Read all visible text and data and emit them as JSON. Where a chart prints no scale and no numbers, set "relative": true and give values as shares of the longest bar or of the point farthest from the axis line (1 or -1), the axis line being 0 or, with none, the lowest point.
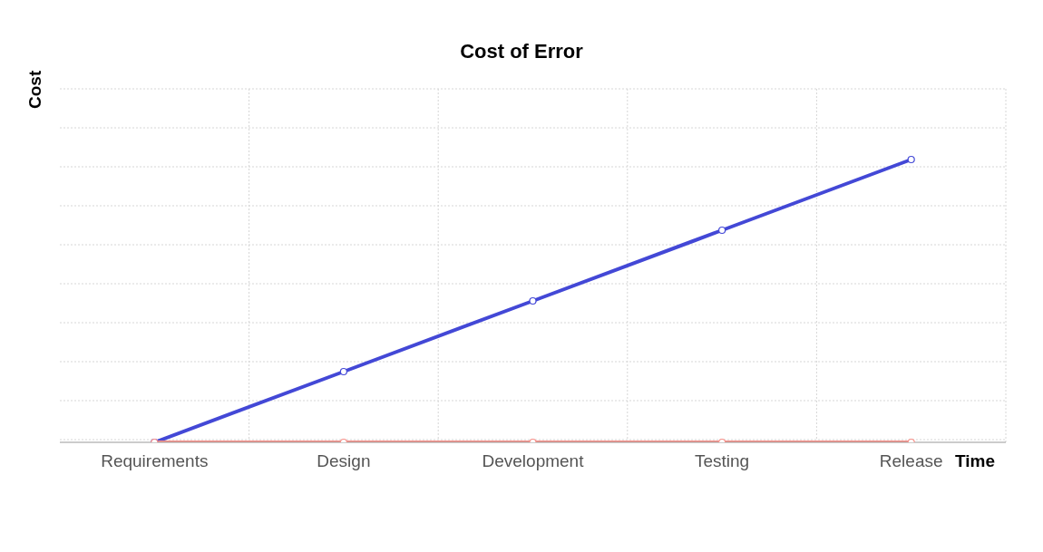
{
  "chart_data": {
    "type": "line",
    "title": "Cost of Error",
    "xlabel": "Time",
    "ylabel": "Cost",
    "relative": true,
    "categories": [
      "Requirements",
      "Design",
      "Development",
      "Testing",
      "Release"
    ],
    "series": [
      {
        "color": "#4348d6",
        "values": [
          0,
          0.25,
          0.5,
          0.75,
          1
        ]
      },
      {
        "color": "#f7918a",
        "values": [
          0,
          0,
          0,
          0,
          0
        ]
      }
    ],
    "grid": true,
    "marker": "circle",
    "line_style": "solid"
  }
}
